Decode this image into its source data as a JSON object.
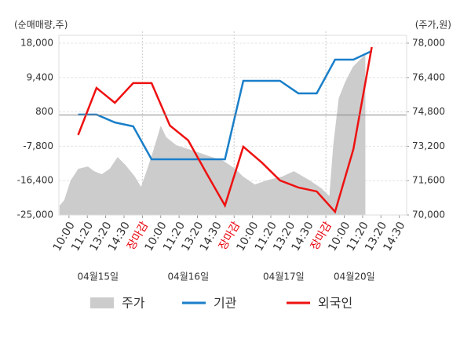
{
  "chart_data": {
    "type": "line",
    "y_label": "(순매매량,주)",
    "y2_label": "(주가,원)",
    "xlim": [
      -0.55,
      18.4
    ],
    "xticks": [
      {
        "value": 0,
        "label": "10:00"
      },
      {
        "value": 1,
        "label": "11:20"
      },
      {
        "value": 2,
        "label": "13:20"
      },
      {
        "value": 3,
        "label": "14:30"
      },
      {
        "value": 4,
        "label": "장마감",
        "color": "#e8000b"
      },
      {
        "value": 5,
        "label": "10:00"
      },
      {
        "value": 6,
        "label": "11:20"
      },
      {
        "value": 7,
        "label": "13:20"
      },
      {
        "value": 8,
        "label": "14:30"
      },
      {
        "value": 9,
        "label": "장마감",
        "color": "#e8000b"
      },
      {
        "value": 10,
        "label": "10:00"
      },
      {
        "value": 11,
        "label": "11:20"
      },
      {
        "value": 12,
        "label": "13:20"
      },
      {
        "value": 13,
        "label": "14:30"
      },
      {
        "value": 14,
        "label": "장마감",
        "color": "#e8000b"
      },
      {
        "value": 15,
        "label": "10:00"
      },
      {
        "value": 16,
        "label": "11:20"
      },
      {
        "value": 17,
        "label": "13:20"
      },
      {
        "value": 18,
        "label": "14:30"
      }
    ],
    "xgroups": [
      {
        "value": 1.58,
        "label": "04월15일"
      },
      {
        "value": 6.5,
        "label": "04월16일"
      },
      {
        "value": 11.7,
        "label": "04월17일"
      },
      {
        "value": 15.55,
        "label": "04월20일"
      }
    ],
    "ylim": [
      -25000,
      18000
    ],
    "yticks": [
      {
        "value": 18000,
        "label": "18,000"
      },
      {
        "value": 9400,
        "label": "9,400"
      },
      800,
      {
        "value": -7800,
        "label": "-7,800"
      },
      {
        "value": -16400,
        "label": "-16,400"
      },
      {
        "value": -25000,
        "label": "-25,000"
      }
    ],
    "y2lim": [
      70000,
      78000
    ],
    "y2ticks": [
      {
        "value": 78000,
        "label": "78,000"
      },
      {
        "value": 76400,
        "label": "76,400"
      },
      {
        "value": 74800,
        "label": "74,800"
      },
      {
        "value": 73200,
        "label": "73,200"
      },
      {
        "value": 71600,
        "label": "71,600"
      },
      {
        "value": 70000,
        "label": "70,000"
      }
    ],
    "grid": true,
    "series": [
      {
        "name": "주가",
        "color": "#cccccc",
        "axis": "y2",
        "kind": "area",
        "x": [
          -0.51,
          -0.26,
          0.09,
          0.51,
          1.03,
          1.37,
          1.79,
          2.22,
          2.65,
          3.08,
          3.59,
          3.93,
          4.27,
          4.62,
          5.0,
          5.3,
          5.85,
          6.5,
          7.14,
          7.78,
          8.42,
          9.06,
          9.49,
          10.13,
          10.77,
          11.62,
          12.26,
          13.12,
          13.76,
          14.19,
          14.4,
          14.7,
          15.04,
          15.47,
          15.9,
          16.15
        ],
        "values": [
          70440,
          70690,
          71610,
          72150,
          72260,
          72040,
          71900,
          72150,
          72700,
          72330,
          71790,
          71310,
          72150,
          73070,
          74160,
          73620,
          73250,
          73070,
          72890,
          72700,
          72520,
          72150,
          71790,
          71420,
          71610,
          71790,
          72040,
          71610,
          71240,
          70880,
          73250,
          75440,
          76170,
          76900,
          77270,
          77450
        ]
      },
      {
        "name": "기관",
        "color": "#1a7fc9",
        "kind": "line",
        "x": [
          0.5,
          1.5,
          2.5,
          3.5,
          4.5,
          5.5,
          6.5,
          7.5,
          8.5,
          9.5,
          10.5,
          11.5,
          12.5,
          13.5,
          14.5,
          15.5,
          16.5
        ],
        "values": [
          140,
          140,
          -1830,
          -2810,
          -11050,
          -11050,
          -11050,
          -11050,
          -11050,
          8580,
          8580,
          8580,
          5440,
          5440,
          13880,
          13880,
          16040
        ]
      },
      {
        "name": "외국인",
        "color": "#ee1111",
        "kind": "line",
        "x": [
          0.5,
          1.5,
          2.5,
          3.5,
          4.5,
          5.5,
          6.5,
          7.5,
          8.5,
          9.5,
          10.5,
          11.5,
          12.5,
          13.5,
          14.5,
          15.5,
          16.5
        ],
        "values": [
          -4970,
          6810,
          3080,
          8000,
          8000,
          -2610,
          -6340,
          -14590,
          -22630,
          -7910,
          -11840,
          -16350,
          -18120,
          -19100,
          -24200,
          -8500,
          17020
        ]
      }
    ]
  }
}
